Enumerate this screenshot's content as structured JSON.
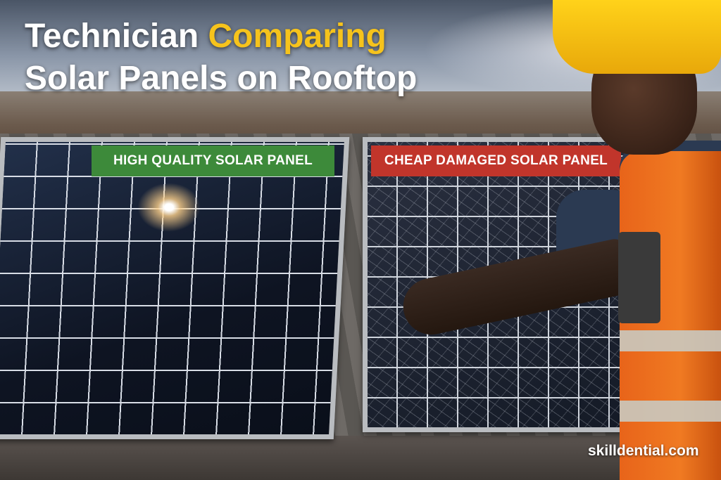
{
  "title": {
    "line1_prefix": "Technician ",
    "line1_highlight": "Comparing",
    "line2": "Solar Panels on Rooftop",
    "highlight_color": "#f6c31c"
  },
  "labels": {
    "good": {
      "text": "HIGH QUALITY SOLAR PANEL",
      "color": "#3d8a3a"
    },
    "bad": {
      "text": "CHEAP DAMAGED SOLAR PANEL",
      "color": "#c1352b"
    }
  },
  "watermark": "skilldential.com"
}
